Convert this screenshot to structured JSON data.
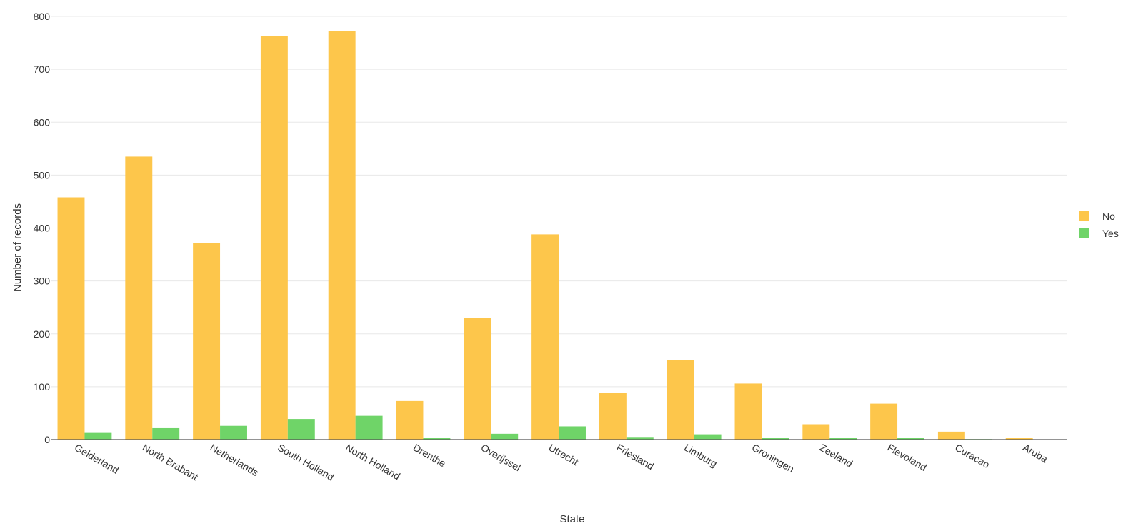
{
  "chart_data": {
    "type": "bar",
    "xlabel": "State",
    "ylabel": "Number of records",
    "ylim": [
      0,
      800
    ],
    "yticks": [
      0,
      100,
      200,
      300,
      400,
      500,
      600,
      700,
      800
    ],
    "grid": true,
    "legend_position": "right",
    "categories": [
      "Gelderland",
      "North Brabant",
      "Netherlands",
      "South Holland",
      "North Holland",
      "Drenthe",
      "Overijssel",
      "Utrecht",
      "Friesland",
      "Limburg",
      "Groningen",
      "Zeeland",
      "Flevoland",
      "Curacao",
      "Aruba"
    ],
    "series": [
      {
        "name": "No",
        "color": "#FDC64B",
        "values": [
          458,
          535,
          371,
          763,
          773,
          73,
          230,
          388,
          89,
          151,
          106,
          29,
          68,
          15,
          3
        ]
      },
      {
        "name": "Yes",
        "color": "#6FD468",
        "values": [
          14,
          23,
          26,
          39,
          45,
          3,
          11,
          25,
          5,
          10,
          4,
          4,
          3,
          1,
          0
        ]
      }
    ]
  }
}
